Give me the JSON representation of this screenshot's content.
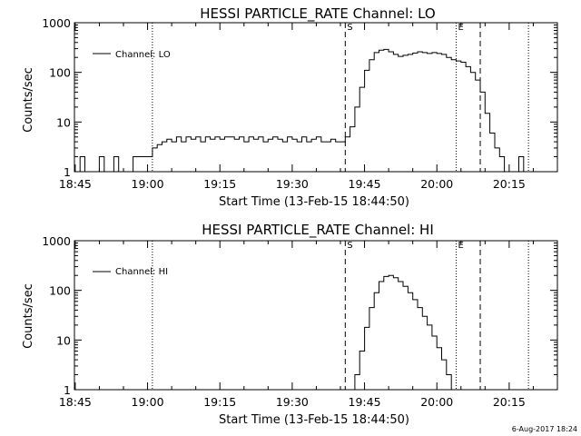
{
  "footer": {
    "stamp": "6-Aug-2017 18:24"
  },
  "chart_data": [
    {
      "type": "line",
      "title": "HESSI PARTICLE_RATE Channel: LO",
      "xlabel": "Start Time (13-Feb-15 18:44:50)",
      "ylabel": "Counts/sec",
      "y_scale": "log",
      "ylim": [
        1,
        1000
      ],
      "xlim": [
        "18:44:50",
        "20:25:00"
      ],
      "x_ticks": [
        "18:45",
        "19:00",
        "19:15",
        "19:30",
        "19:45",
        "20:00",
        "20:15"
      ],
      "y_ticks": [
        "1",
        "10",
        "100",
        "1000"
      ],
      "legend": {
        "label": "Channel: LO",
        "position": "top-left"
      },
      "markers": [
        {
          "time": "19:01",
          "style": "dotted",
          "label": ""
        },
        {
          "time": "19:41",
          "style": "dashed",
          "label": "S"
        },
        {
          "time": "20:04",
          "style": "dotted",
          "label": "E"
        },
        {
          "time": "20:09",
          "style": "dashed",
          "label": ""
        },
        {
          "time": "20:19",
          "style": "dotted",
          "label": ""
        }
      ],
      "series": [
        {
          "name": "Channel: LO",
          "x": [
            "18:45",
            "18:46",
            "18:47",
            "18:48",
            "18:49",
            "18:50",
            "18:51",
            "18:52",
            "18:53",
            "18:54",
            "18:55",
            "18:56",
            "18:57",
            "18:58",
            "18:59",
            "19:00",
            "19:01",
            "19:02",
            "19:03",
            "19:04",
            "19:05",
            "19:06",
            "19:07",
            "19:08",
            "19:09",
            "19:10",
            "19:11",
            "19:12",
            "19:13",
            "19:14",
            "19:15",
            "19:16",
            "19:17",
            "19:18",
            "19:19",
            "19:20",
            "19:21",
            "19:22",
            "19:23",
            "19:24",
            "19:25",
            "19:26",
            "19:27",
            "19:28",
            "19:29",
            "19:30",
            "19:31",
            "19:32",
            "19:33",
            "19:34",
            "19:35",
            "19:36",
            "19:37",
            "19:38",
            "19:39",
            "19:40",
            "19:41",
            "19:42",
            "19:43",
            "19:44",
            "19:45",
            "19:46",
            "19:47",
            "19:48",
            "19:49",
            "19:50",
            "19:51",
            "19:52",
            "19:53",
            "19:54",
            "19:55",
            "19:56",
            "19:57",
            "19:58",
            "19:59",
            "20:00",
            "20:01",
            "20:02",
            "20:03",
            "20:04",
            "20:05",
            "20:06",
            "20:07",
            "20:08",
            "20:09",
            "20:10",
            "20:11",
            "20:12",
            "20:13",
            "20:14",
            "20:15",
            "20:16",
            "20:17",
            "20:18",
            "20:19",
            "20:20",
            "20:21",
            "20:22",
            "20:23",
            "20:24"
          ],
          "y": [
            1,
            2,
            1,
            1,
            1,
            2,
            1,
            1,
            2,
            1,
            1,
            1,
            2,
            2,
            2,
            2,
            3,
            3.5,
            4,
            4.5,
            4,
            5,
            4,
            5,
            4.5,
            5,
            4,
            5,
            4.5,
            5,
            4.5,
            5,
            5,
            4.5,
            5,
            4,
            5,
            4.5,
            5,
            4,
            4.5,
            5,
            4.5,
            4,
            5,
            4.5,
            4,
            5,
            4,
            4.5,
            5,
            4,
            4,
            4.5,
            4,
            4,
            5,
            8,
            20,
            50,
            110,
            180,
            250,
            280,
            290,
            260,
            230,
            210,
            220,
            230,
            245,
            260,
            250,
            240,
            250,
            240,
            230,
            200,
            180,
            170,
            160,
            130,
            100,
            70,
            40,
            15,
            6,
            3,
            2,
            1,
            1,
            1,
            2,
            1,
            1,
            1,
            1,
            1,
            1,
            1
          ]
        }
      ]
    },
    {
      "type": "line",
      "title": "HESSI PARTICLE_RATE Channel: HI",
      "xlabel": "Start Time (13-Feb-15 18:44:50)",
      "ylabel": "Counts/sec",
      "y_scale": "log",
      "ylim": [
        1,
        1000
      ],
      "xlim": [
        "18:44:50",
        "20:25:00"
      ],
      "x_ticks": [
        "18:45",
        "19:00",
        "19:15",
        "19:30",
        "19:45",
        "20:00",
        "20:15"
      ],
      "y_ticks": [
        "1",
        "10",
        "100",
        "1000"
      ],
      "legend": {
        "label": "Channel: HI",
        "position": "top-left"
      },
      "markers": [
        {
          "time": "19:01",
          "style": "dotted",
          "label": ""
        },
        {
          "time": "19:41",
          "style": "dashed",
          "label": "S"
        },
        {
          "time": "20:04",
          "style": "dotted",
          "label": "E"
        },
        {
          "time": "20:09",
          "style": "dashed",
          "label": ""
        },
        {
          "time": "20:19",
          "style": "dotted",
          "label": ""
        }
      ],
      "series": [
        {
          "name": "Channel: HI",
          "x": [
            "19:42",
            "19:43",
            "19:44",
            "19:45",
            "19:46",
            "19:47",
            "19:48",
            "19:49",
            "19:50",
            "19:51",
            "19:52",
            "19:53",
            "19:54",
            "19:55",
            "19:56",
            "19:57",
            "19:58",
            "19:59",
            "20:00",
            "20:01",
            "20:02",
            "20:03"
          ],
          "y": [
            1,
            2,
            6,
            18,
            45,
            90,
            150,
            190,
            200,
            180,
            150,
            120,
            90,
            65,
            45,
            30,
            20,
            12,
            7,
            4,
            2,
            1
          ]
        }
      ]
    }
  ]
}
